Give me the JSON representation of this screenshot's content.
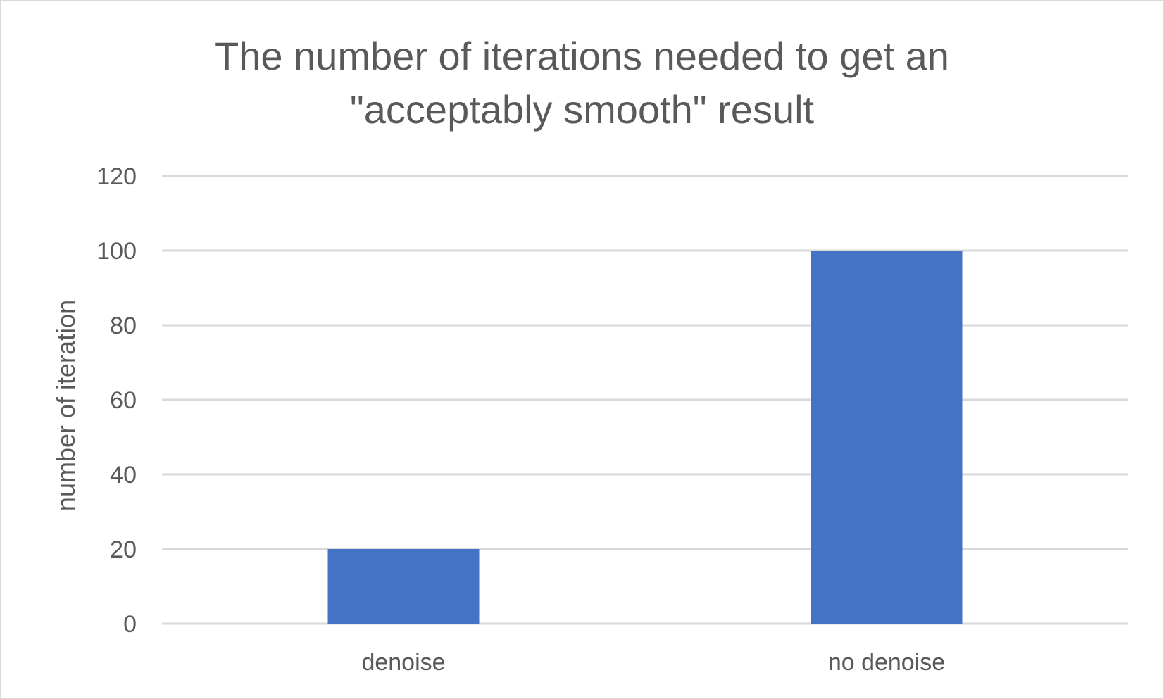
{
  "chart_data": {
    "type": "bar",
    "title_lines": [
      "The number of iterations needed to get an",
      "\"acceptably smooth\" result"
    ],
    "categories": [
      "denoise",
      "no denoise"
    ],
    "values": [
      20,
      100
    ],
    "xlabel": "",
    "ylabel": "number of iteration",
    "ylim": [
      0,
      120
    ],
    "yticks": [
      "0",
      "20",
      "40",
      "60",
      "80",
      "100",
      "120"
    ],
    "grid": true,
    "legend": "none",
    "bar_color": "#4472c4",
    "gridline_color": "#d9d9d9",
    "text_color": "#595959"
  }
}
